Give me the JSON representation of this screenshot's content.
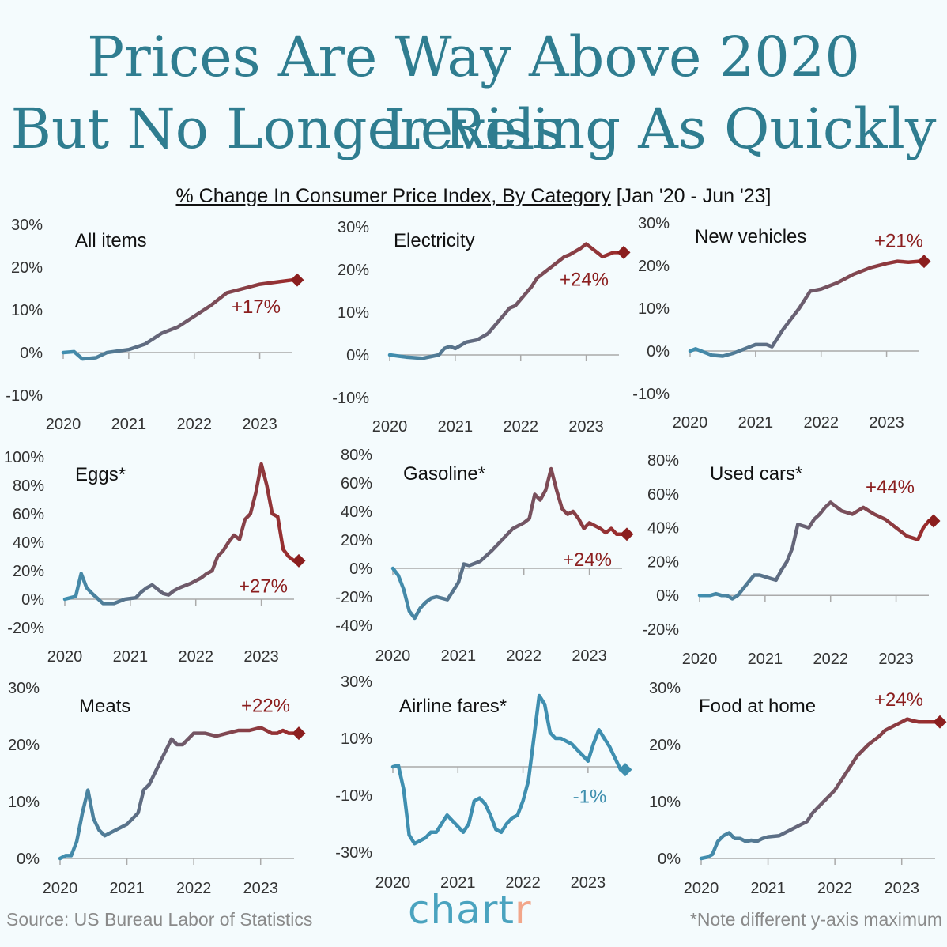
{
  "title_line1": "Prices Are Way Above 2020 Levels",
  "title_line2": "But No Longer Rising As Quickly",
  "subtitle_main": "% Change In Consumer Price Index, By Category",
  "subtitle_range": "[Jan '20 - Jun '23]",
  "footer": {
    "source": "Source: US Bureau Labor of Statistics",
    "note": "*Note different y-axis maximum",
    "logo_part1": "chart",
    "logo_part2": "r"
  },
  "colors": {
    "title": "#2f7d90",
    "start_line": "#3f8fb0",
    "end_line": "#9b2a2a",
    "up_marker": "#8b1e1e",
    "down_marker": "#3e8fae"
  },
  "chart_data": [
    {
      "type": "line",
      "title": "All items",
      "x_ticks": [
        "2020",
        "2021",
        "2022",
        "2023"
      ],
      "y_ticks": [
        "30%",
        "20%",
        "10%",
        "0%",
        "-10%"
      ],
      "ylim": [
        -10,
        30
      ],
      "end_label": "+17%",
      "series": [
        {
          "x": [
            0,
            2,
            3.5,
            6,
            8,
            12,
            15,
            18,
            21,
            24,
            27,
            30,
            33,
            36,
            39,
            42
          ],
          "y": [
            0,
            0.2,
            -1.5,
            -1.2,
            0,
            0.7,
            2,
            4.5,
            6,
            8.5,
            11,
            14,
            15,
            16,
            16.5,
            17
          ]
        }
      ]
    },
    {
      "type": "line",
      "title": "Electricity",
      "x_ticks": [
        "2020",
        "2021",
        "2022",
        "2023"
      ],
      "y_ticks": [
        "30%",
        "20%",
        "10%",
        "0%",
        "-10%"
      ],
      "ylim": [
        -10,
        30
      ],
      "end_label": "+24%",
      "series": [
        {
          "x": [
            0,
            3,
            6,
            9,
            10,
            11,
            12,
            14,
            16,
            18,
            20,
            22,
            23,
            24,
            26,
            27,
            28,
            30,
            32,
            33,
            35,
            36,
            37,
            38,
            39,
            40,
            41,
            42
          ],
          "y": [
            0,
            -0.5,
            -0.8,
            0,
            1.5,
            2,
            1.5,
            3,
            3.5,
            5,
            8,
            11,
            11.5,
            13,
            16,
            18,
            19,
            21,
            23,
            23.5,
            25,
            26,
            25,
            24,
            23,
            23.5,
            24,
            24
          ]
        }
      ]
    },
    {
      "type": "line",
      "title": "New vehicles",
      "x_ticks": [
        "2020",
        "2021",
        "2022",
        "2023"
      ],
      "y_ticks": [
        "30%",
        "20%",
        "10%",
        "0%",
        "-10%"
      ],
      "ylim": [
        -10,
        30
      ],
      "end_label": "+21%",
      "series": [
        {
          "x": [
            0,
            1,
            2,
            4,
            6,
            8,
            10,
            12,
            14,
            15,
            17,
            20,
            22,
            24,
            27,
            30,
            33,
            36,
            38,
            40,
            42
          ],
          "y": [
            0,
            0.5,
            0,
            -1,
            -1.2,
            -0.5,
            0.5,
            1.5,
            1.5,
            1,
            5,
            10,
            14,
            14.5,
            16,
            18,
            19.5,
            20.5,
            21,
            20.8,
            21
          ]
        }
      ]
    },
    {
      "type": "line",
      "title": "Eggs*",
      "x_ticks": [
        "2020",
        "2021",
        "2022",
        "2023"
      ],
      "y_ticks": [
        "100%",
        "80%",
        "60%",
        "40%",
        "20%",
        "0%",
        "-20%"
      ],
      "ylim": [
        -20,
        100
      ],
      "end_label": "+27%",
      "series": [
        {
          "x": [
            0,
            2,
            3,
            4,
            5,
            7,
            9,
            11,
            13,
            14,
            15,
            16,
            18,
            19,
            20,
            21,
            23,
            25,
            26,
            27,
            28,
            29,
            30,
            31,
            32,
            33,
            34,
            35,
            36,
            37,
            38,
            39,
            40,
            41,
            42
          ],
          "y": [
            0,
            2,
            18,
            8,
            4,
            -3,
            -3,
            0,
            1,
            5,
            8,
            10,
            4,
            3,
            6,
            8,
            11,
            15,
            18,
            20,
            30,
            34,
            40,
            45,
            42,
            56,
            60,
            75,
            95,
            80,
            60,
            58,
            35,
            30,
            27
          ]
        }
      ]
    },
    {
      "type": "line",
      "title": "Gasoline*",
      "x_ticks": [
        "2020",
        "2021",
        "2022",
        "2023"
      ],
      "y_ticks": [
        "80%",
        "60%",
        "40%",
        "20%",
        "0%",
        "-20%",
        "-40%"
      ],
      "ylim": [
        -40,
        80
      ],
      "end_label": "+24%",
      "series": [
        {
          "x": [
            0,
            1,
            2,
            3,
            4,
            5,
            6,
            7,
            8,
            10,
            12,
            13,
            14,
            16,
            18,
            20,
            22,
            24,
            25,
            26,
            27,
            28,
            29,
            30,
            31,
            32,
            33,
            34,
            35,
            36,
            37,
            38,
            39,
            40,
            41,
            42
          ],
          "y": [
            0,
            -5,
            -15,
            -30,
            -35,
            -28,
            -24,
            -21,
            -20,
            -22,
            -10,
            3,
            2,
            5,
            12,
            20,
            28,
            32,
            35,
            52,
            48,
            55,
            70,
            55,
            42,
            38,
            40,
            35,
            28,
            32,
            30,
            28,
            25,
            28,
            24,
            24
          ]
        }
      ]
    },
    {
      "type": "line",
      "title": "Used cars*",
      "x_ticks": [
        "2020",
        "2021",
        "2022",
        "2023"
      ],
      "y_ticks": [
        "80%",
        "60%",
        "40%",
        "20%",
        "0%",
        "-20%"
      ],
      "ylim": [
        -20,
        80
      ],
      "end_label": "+44%",
      "series": [
        {
          "x": [
            0,
            2,
            3,
            4,
            5,
            6,
            7,
            9,
            10,
            11,
            13,
            14,
            15,
            16,
            17,
            18,
            20,
            21,
            22,
            23,
            24,
            26,
            28,
            30,
            31,
            32,
            34,
            36,
            38,
            40,
            41,
            42
          ],
          "y": [
            0,
            0,
            1,
            0,
            0,
            -2,
            0,
            8,
            12,
            12,
            10,
            9,
            15,
            20,
            28,
            42,
            40,
            45,
            48,
            52,
            55,
            50,
            48,
            52,
            50,
            48,
            45,
            40,
            35,
            33,
            40,
            44
          ]
        }
      ]
    },
    {
      "type": "line",
      "title": "Meats",
      "x_ticks": [
        "2020",
        "2021",
        "2022",
        "2023"
      ],
      "y_ticks": [
        "30%",
        "20%",
        "10%",
        "0%"
      ],
      "ylim": [
        0,
        30
      ],
      "end_label": "+22%",
      "series": [
        {
          "x": [
            0,
            1,
            2,
            3,
            4,
            5,
            6,
            7,
            8,
            9,
            10,
            12,
            14,
            15,
            16,
            17,
            19,
            20,
            21,
            22,
            23,
            24,
            26,
            28,
            30,
            32,
            34,
            36,
            37,
            38,
            39,
            40,
            41,
            42
          ],
          "y": [
            0,
            0.5,
            0.5,
            3,
            8,
            12,
            7,
            5,
            4,
            4.5,
            5,
            6,
            8,
            12,
            13,
            15,
            19,
            21,
            20,
            20,
            21,
            22,
            22,
            21.5,
            22,
            22.5,
            22.5,
            23,
            22.5,
            22,
            22,
            22.5,
            22,
            22
          ]
        }
      ]
    },
    {
      "type": "line",
      "title": "Airline fares*",
      "x_ticks": [
        "2020",
        "2021",
        "2022",
        "2023"
      ],
      "y_ticks": [
        "30%",
        "10%",
        "-10%",
        "-30%"
      ],
      "ylim": [
        -30,
        30
      ],
      "end_label": "-1%",
      "series": [
        {
          "x": [
            0,
            1,
            2,
            3,
            4,
            5,
            6,
            7,
            8,
            9,
            10,
            11,
            12,
            13,
            14,
            15,
            16,
            17,
            18,
            19,
            20,
            21,
            22,
            23,
            24,
            25,
            26,
            27,
            28,
            29,
            30,
            31,
            32,
            33,
            34,
            35,
            36,
            37,
            38,
            39,
            40,
            41,
            42
          ],
          "y": [
            0,
            0.5,
            -8,
            -24,
            -27,
            -26,
            -25,
            -23,
            -23,
            -20,
            -17,
            -19,
            -21,
            -23,
            -20,
            -12,
            -11,
            -13,
            -17,
            -22,
            -23,
            -20,
            -18,
            -17,
            -12,
            -5,
            10,
            25,
            22,
            12,
            10,
            10,
            9,
            8,
            6,
            4,
            2,
            8,
            13,
            10,
            7,
            3,
            -1
          ]
        }
      ]
    },
    {
      "type": "line",
      "title": "Food at home",
      "x_ticks": [
        "2020",
        "2021",
        "2022",
        "2023"
      ],
      "y_ticks": [
        "30%",
        "20%",
        "10%",
        "0%"
      ],
      "ylim": [
        0,
        30
      ],
      "end_label": "+24%",
      "series": [
        {
          "x": [
            0,
            1,
            2,
            3,
            4,
            5,
            6,
            7,
            8,
            9,
            10,
            11,
            12,
            14,
            16,
            17,
            18,
            19,
            20,
            21,
            22,
            23,
            24,
            26,
            28,
            30,
            32,
            33,
            34,
            35,
            36,
            37,
            38,
            39,
            40,
            41,
            42
          ],
          "y": [
            0,
            0.2,
            0.7,
            3,
            4,
            4.5,
            3.5,
            3.5,
            3,
            3.2,
            3,
            3.5,
            3.8,
            4,
            5,
            5.5,
            6,
            6.5,
            8,
            9,
            10,
            11,
            12,
            15,
            18,
            20,
            21.5,
            22.5,
            23,
            23.5,
            24,
            24.5,
            24.2,
            24,
            24,
            24,
            24
          ]
        }
      ]
    }
  ]
}
